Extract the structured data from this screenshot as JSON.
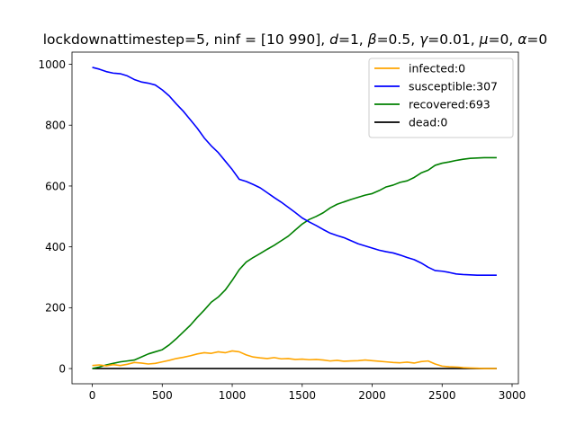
{
  "chart_data": {
    "type": "line",
    "title": "lockdownattimestep=5, ninf = [10 990], d=1, β=0.5, γ=0.01, μ=0, α=0",
    "title_parts": [
      {
        "text": "lockdownattimestep=5, ninf = [10 990], ",
        "italic": false
      },
      {
        "text": "d",
        "italic": true
      },
      {
        "text": "=1, ",
        "italic": false
      },
      {
        "text": "β",
        "italic": true
      },
      {
        "text": "=0.5, ",
        "italic": false
      },
      {
        "text": "γ",
        "italic": true
      },
      {
        "text": "=0.01, ",
        "italic": false
      },
      {
        "text": "μ",
        "italic": true
      },
      {
        "text": "=0, ",
        "italic": false
      },
      {
        "text": "α",
        "italic": true
      },
      {
        "text": "=0",
        "italic": false
      }
    ],
    "xlabel": "",
    "ylabel": "",
    "xlim": [
      -145,
      3045
    ],
    "ylim": [
      -50,
      1040
    ],
    "xticks": [
      0,
      500,
      1000,
      1500,
      2000,
      2500,
      3000
    ],
    "yticks": [
      0,
      200,
      400,
      600,
      800,
      1000
    ],
    "grid": false,
    "legend_position": "top-right",
    "series": [
      {
        "name": "infected:0",
        "color": "#ffa500",
        "x": [
          0,
          50,
          100,
          150,
          200,
          250,
          300,
          350,
          400,
          450,
          500,
          550,
          600,
          650,
          700,
          750,
          800,
          850,
          900,
          950,
          1000,
          1050,
          1100,
          1150,
          1200,
          1250,
          1300,
          1350,
          1400,
          1450,
          1500,
          1550,
          1600,
          1650,
          1700,
          1750,
          1800,
          1850,
          1900,
          1950,
          2000,
          2050,
          2100,
          2150,
          2200,
          2250,
          2300,
          2350,
          2400,
          2450,
          2500,
          2550,
          2600,
          2650,
          2700,
          2750,
          2800,
          2850,
          2890
        ],
        "y": [
          10,
          12,
          9,
          13,
          10,
          14,
          20,
          18,
          15,
          17,
          22,
          27,
          33,
          37,
          42,
          48,
          52,
          50,
          55,
          52,
          58,
          55,
          45,
          38,
          35,
          33,
          36,
          32,
          33,
          30,
          31,
          29,
          30,
          28,
          25,
          27,
          24,
          25,
          26,
          28,
          26,
          24,
          22,
          20,
          19,
          21,
          18,
          23,
          25,
          15,
          8,
          6,
          5,
          3,
          2,
          1,
          0,
          0,
          0
        ]
      },
      {
        "name": "susceptible:307",
        "color": "#0000ff",
        "x": [
          0,
          50,
          100,
          150,
          200,
          250,
          300,
          350,
          400,
          450,
          500,
          550,
          600,
          650,
          700,
          750,
          800,
          850,
          900,
          950,
          1000,
          1050,
          1100,
          1150,
          1200,
          1250,
          1300,
          1350,
          1400,
          1450,
          1500,
          1550,
          1600,
          1650,
          1700,
          1750,
          1800,
          1850,
          1900,
          1950,
          2000,
          2050,
          2100,
          2150,
          2200,
          2250,
          2300,
          2350,
          2400,
          2450,
          2500,
          2550,
          2600,
          2650,
          2700,
          2750,
          2800,
          2850,
          2890
        ],
        "y": [
          990,
          984,
          976,
          971,
          969,
          962,
          950,
          942,
          938,
          932,
          916,
          896,
          870,
          846,
          818,
          790,
          758,
          732,
          710,
          682,
          654,
          622,
          615,
          605,
          594,
          578,
          562,
          547,
          530,
          513,
          495,
          482,
          470,
          457,
          445,
          437,
          430,
          420,
          410,
          403,
          396,
          389,
          384,
          380,
          373,
          365,
          358,
          347,
          333,
          322,
          320,
          316,
          311,
          309,
          308,
          307,
          307,
          307,
          307
        ]
      },
      {
        "name": "recovered:693",
        "color": "#008000",
        "x": [
          0,
          50,
          100,
          150,
          200,
          250,
          300,
          350,
          400,
          450,
          500,
          550,
          600,
          650,
          700,
          750,
          800,
          850,
          900,
          950,
          1000,
          1050,
          1100,
          1150,
          1200,
          1250,
          1300,
          1350,
          1400,
          1450,
          1500,
          1550,
          1600,
          1650,
          1700,
          1750,
          1800,
          1850,
          1900,
          1950,
          2000,
          2050,
          2100,
          2150,
          2200,
          2250,
          2300,
          2350,
          2400,
          2450,
          2500,
          2550,
          2600,
          2650,
          2700,
          2750,
          2800,
          2850,
          2890
        ],
        "y": [
          0,
          5,
          12,
          17,
          22,
          25,
          28,
          38,
          48,
          55,
          62,
          78,
          98,
          120,
          142,
          168,
          192,
          218,
          235,
          258,
          290,
          325,
          350,
          365,
          378,
          392,
          405,
          420,
          435,
          455,
          475,
          490,
          500,
          512,
          528,
          540,
          548,
          556,
          563,
          570,
          575,
          585,
          597,
          603,
          612,
          617,
          628,
          643,
          652,
          668,
          675,
          679,
          684,
          688,
          691,
          692,
          693,
          693,
          693
        ]
      },
      {
        "name": "dead:0",
        "color": "#000000",
        "x": [
          0,
          2890
        ],
        "y": [
          0,
          0
        ]
      }
    ]
  }
}
